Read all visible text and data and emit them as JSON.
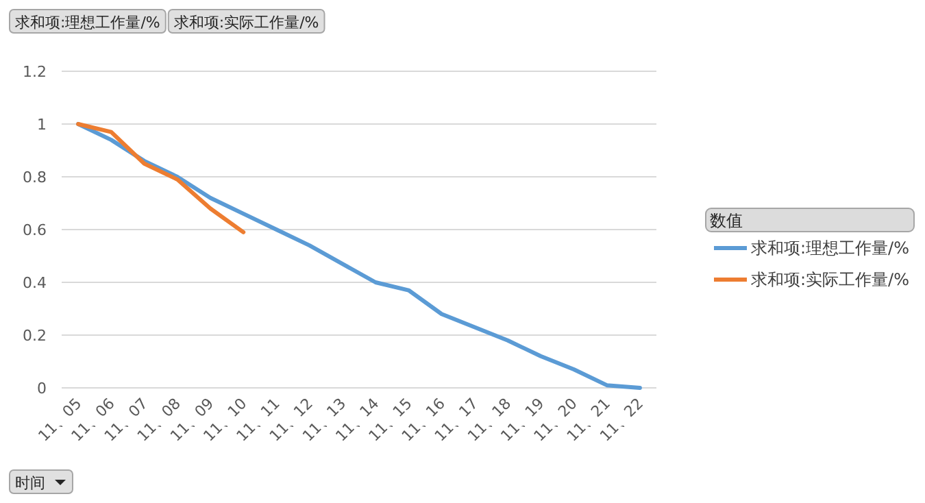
{
  "chart_data": {
    "type": "line",
    "categories": [
      "11、05",
      "11、06",
      "11、07",
      "11、08",
      "11、09",
      "11、10",
      "11、11",
      "11、12",
      "11、13",
      "11、14",
      "11、15",
      "11、16",
      "11、17",
      "11、18",
      "11、19",
      "11、20",
      "11、21",
      "11、22"
    ],
    "series": [
      {
        "name": "求和项:理想工作量/%",
        "color": "#5b9bd5",
        "values": [
          1.0,
          0.94,
          0.86,
          0.8,
          0.72,
          0.66,
          0.6,
          0.54,
          0.47,
          0.4,
          0.37,
          0.28,
          0.23,
          0.18,
          0.12,
          0.07,
          0.01,
          0.0
        ]
      },
      {
        "name": "求和项:实际工作量/%",
        "color": "#ed7d31",
        "values": [
          1.0,
          0.97,
          0.85,
          0.79,
          0.68,
          0.59,
          null,
          null,
          null,
          null,
          null,
          null,
          null,
          null,
          null,
          null,
          null,
          null
        ]
      }
    ],
    "ylim": [
      0,
      1.2
    ],
    "yticks": [
      0,
      0.2,
      0.4,
      0.6,
      0.8,
      1,
      1.2
    ],
    "grid": "y",
    "legend": "right",
    "legend_title": "数值",
    "annotations": [
      "求和项:理想工作量/%",
      "求和项:实际工作量/%",
      "时间"
    ]
  }
}
